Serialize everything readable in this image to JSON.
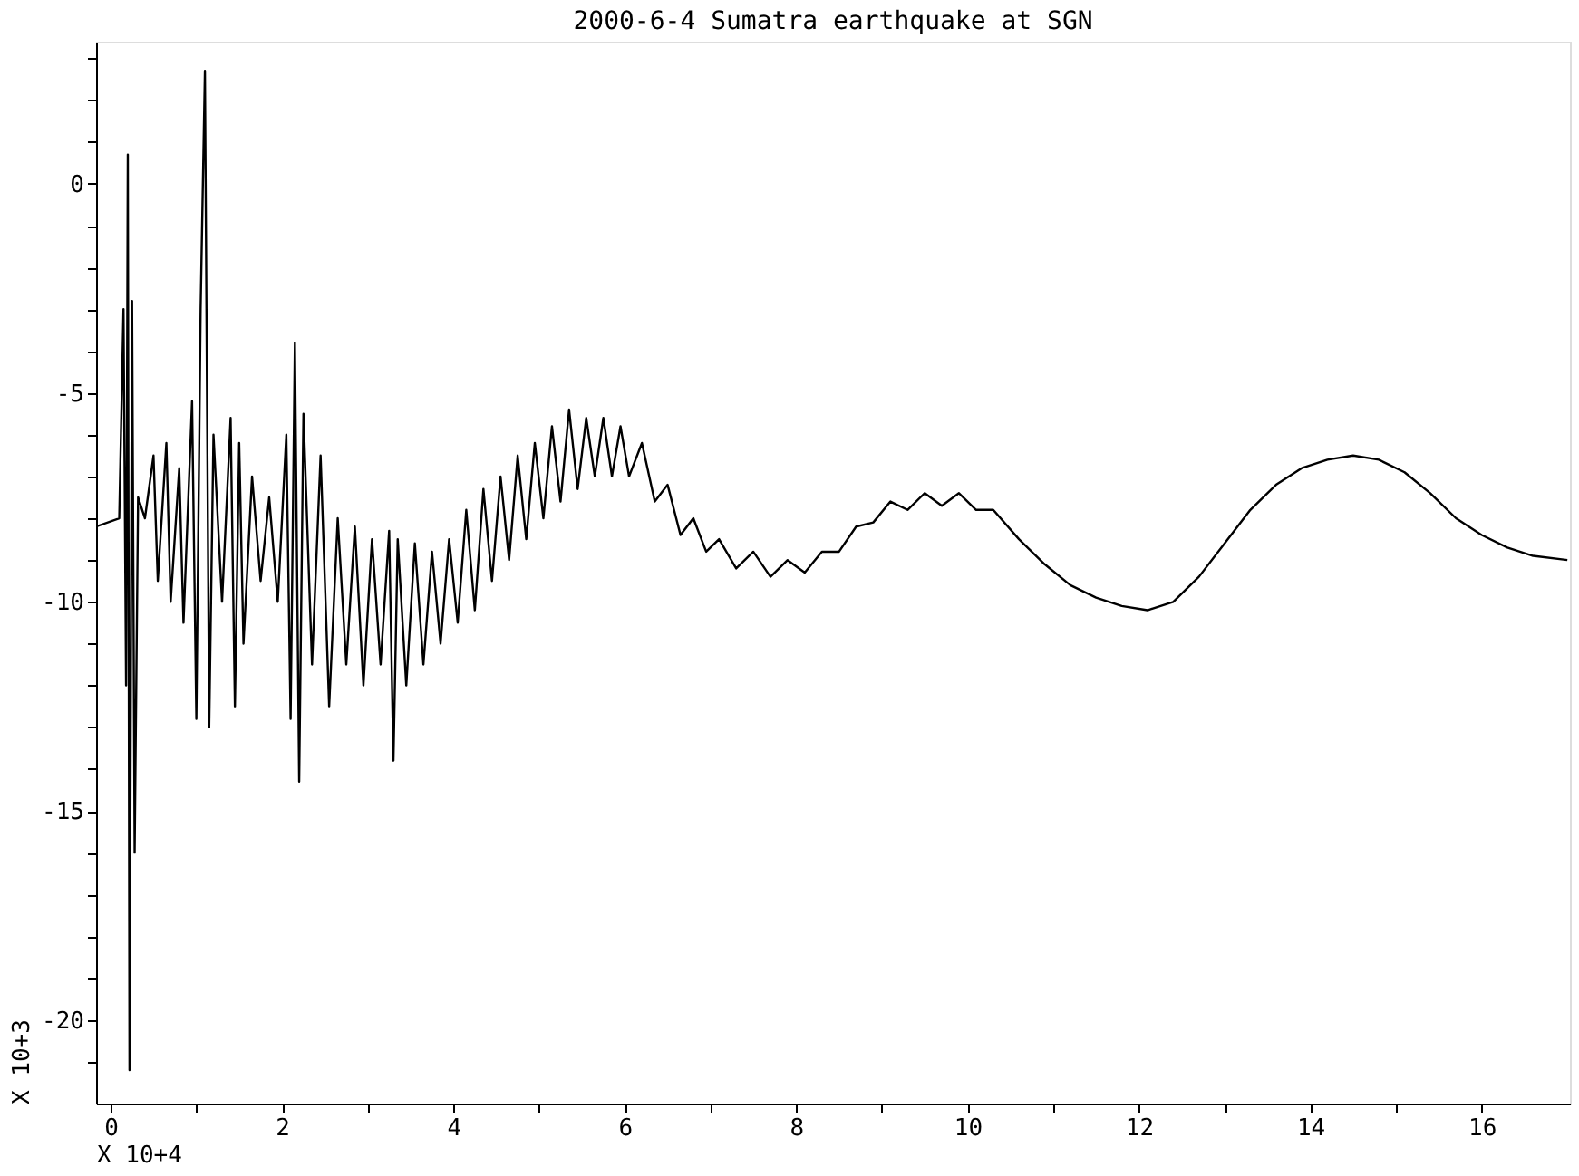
{
  "chart_data": {
    "type": "line",
    "title": "2000-6-4 Sumatra earthquake at SGN",
    "xlabel": "X 10+4",
    "ylabel": "X 10+3",
    "xlim": [
      -0.17,
      17.03
    ],
    "ylim": [
      -22,
      3.4
    ],
    "xticks": [
      0,
      {
        "value": 1,
        "label": null
      },
      2,
      {
        "value": 3,
        "label": null
      },
      4,
      {
        "value": 5,
        "label": null
      },
      6,
      {
        "value": 7,
        "label": null
      },
      8,
      {
        "value": 9,
        "label": null
      },
      10,
      {
        "value": 11,
        "label": null
      },
      12,
      {
        "value": 13,
        "label": null
      },
      14,
      {
        "value": 15,
        "label": null
      },
      16
    ],
    "yticks": [
      {
        "value": 3,
        "label": null
      },
      {
        "value": 2,
        "label": null
      },
      {
        "value": 1,
        "label": null
      },
      0,
      {
        "value": -1,
        "label": null
      },
      {
        "value": -2,
        "label": null
      },
      {
        "value": -3,
        "label": null
      },
      {
        "value": -4,
        "label": null
      },
      -5,
      {
        "value": -6,
        "label": null
      },
      {
        "value": -7,
        "label": null
      },
      {
        "value": -8,
        "label": null
      },
      {
        "value": -9,
        "label": null
      },
      -10,
      {
        "value": -11,
        "label": null
      },
      {
        "value": -12,
        "label": null
      },
      {
        "value": -13,
        "label": null
      },
      {
        "value": -14,
        "label": null
      },
      -15,
      {
        "value": -16,
        "label": null
      },
      {
        "value": -17,
        "label": null
      },
      {
        "value": -18,
        "label": null
      },
      {
        "value": -19,
        "label": null
      },
      -20,
      {
        "value": -21,
        "label": null
      }
    ],
    "grid": false,
    "marker": "none",
    "line_style": "solid",
    "series": [
      {
        "color": "#000000",
        "x": [
          -0.17,
          0.1,
          0.15,
          0.18,
          0.2,
          0.22,
          0.25,
          0.28,
          0.32,
          0.4,
          0.5,
          0.55,
          0.65,
          0.7,
          0.8,
          0.85,
          0.95,
          1.0,
          1.05,
          1.1,
          1.15,
          1.2,
          1.3,
          1.4,
          1.45,
          1.5,
          1.55,
          1.65,
          1.75,
          1.85,
          1.95,
          2.05,
          2.1,
          2.15,
          2.2,
          2.25,
          2.35,
          2.45,
          2.55,
          2.65,
          2.75,
          2.85,
          2.95,
          3.05,
          3.15,
          3.25,
          3.3,
          3.35,
          3.45,
          3.55,
          3.65,
          3.75,
          3.85,
          3.95,
          4.05,
          4.15,
          4.25,
          4.35,
          4.45,
          4.55,
          4.65,
          4.75,
          4.85,
          4.95,
          5.05,
          5.15,
          5.25,
          5.35,
          5.45,
          5.55,
          5.65,
          5.75,
          5.85,
          5.95,
          6.05,
          6.2,
          6.35,
          6.5,
          6.65,
          6.8,
          6.95,
          7.1,
          7.3,
          7.5,
          7.7,
          7.9,
          8.1,
          8.3,
          8.5,
          8.7,
          8.9,
          9.1,
          9.3,
          9.5,
          9.7,
          9.9,
          10.1,
          10.3,
          10.6,
          10.9,
          11.2,
          11.5,
          11.8,
          12.1,
          12.4,
          12.7,
          13.0,
          13.3,
          13.6,
          13.9,
          14.2,
          14.5,
          14.8,
          15.1,
          15.4,
          15.7,
          16.0,
          16.3,
          16.6,
          17.0
        ],
        "values": [
          -8.2,
          -8.0,
          -3,
          -12,
          0.7,
          -21.2,
          -2.8,
          -16,
          -7.5,
          -8.0,
          -6.5,
          -9.5,
          -6.2,
          -10,
          -6.8,
          -10.5,
          -5.2,
          -12.8,
          -3,
          2.7,
          -13,
          -6,
          -10,
          -5.6,
          -12.5,
          -6.2,
          -11,
          -7,
          -9.5,
          -7.5,
          -10,
          -6,
          -12.8,
          -3.8,
          -14.3,
          -5.5,
          -11.5,
          -6.5,
          -12.5,
          -8,
          -11.5,
          -8.2,
          -12,
          -8.5,
          -11.5,
          -8.3,
          -13.8,
          -8.5,
          -12,
          -8.6,
          -11.5,
          -8.8,
          -11,
          -8.5,
          -10.5,
          -7.8,
          -10.2,
          -7.3,
          -9.5,
          -7.0,
          -9.0,
          -6.5,
          -8.5,
          -6.2,
          -8.0,
          -5.8,
          -7.6,
          -5.4,
          -7.3,
          -5.6,
          -7.0,
          -5.6,
          -7.0,
          -5.8,
          -7.0,
          -6.2,
          -7.6,
          -7.2,
          -8.4,
          -8.0,
          -8.8,
          -8.5,
          -9.2,
          -8.8,
          -9.4,
          -9.0,
          -9.3,
          -8.8,
          -8.8,
          -8.2,
          -8.1,
          -7.6,
          -7.8,
          -7.4,
          -7.7,
          -7.4,
          -7.8,
          -7.8,
          -8.5,
          -9.1,
          -9.6,
          -9.9,
          -10.1,
          -10.2,
          -10.0,
          -9.4,
          -8.6,
          -7.8,
          -7.2,
          -6.8,
          -6.6,
          -6.5,
          -6.6,
          -6.9,
          -7.4,
          -8.0,
          -8.4,
          -8.7,
          -8.9,
          -9.0
        ]
      }
    ]
  }
}
